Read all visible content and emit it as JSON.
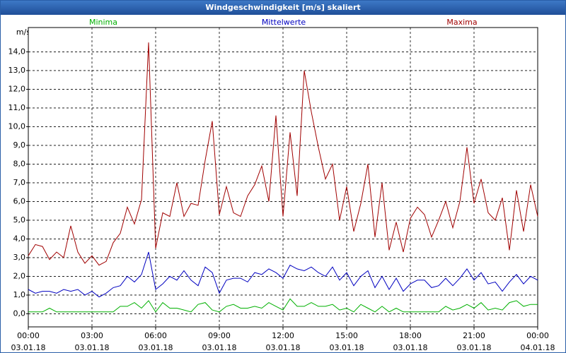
{
  "window_title": "Windgeschwindigkeit [m/s] skaliert",
  "chart_data": {
    "type": "line",
    "ylabel": "m/s",
    "x": [
      0,
      20,
      40,
      60,
      80,
      100,
      120,
      140,
      160,
      180,
      200,
      220,
      240,
      260,
      280,
      300,
      320,
      340,
      360,
      380,
      400,
      420,
      440,
      460,
      480,
      500,
      520,
      540,
      560,
      580,
      600,
      620,
      640,
      660,
      680,
      700,
      720,
      740,
      760,
      780,
      800,
      820,
      840,
      860,
      880,
      900,
      920,
      940,
      960,
      980,
      1000,
      1020,
      1040,
      1060,
      1080,
      1100,
      1120,
      1140,
      1160,
      1180,
      1200,
      1220,
      1240,
      1260,
      1280,
      1300,
      1320,
      1340,
      1360,
      1380,
      1400,
      1420,
      1440
    ],
    "xlim": [
      0,
      1440
    ],
    "xticks": [
      {
        "value": 0,
        "label": "00:00"
      },
      {
        "value": 180,
        "label": "03:00"
      },
      {
        "value": 360,
        "label": "06:00"
      },
      {
        "value": 540,
        "label": "09:00"
      },
      {
        "value": 720,
        "label": "12:00"
      },
      {
        "value": 900,
        "label": "15:00"
      },
      {
        "value": 1080,
        "label": "18:00"
      },
      {
        "value": 1260,
        "label": "21:00"
      },
      {
        "value": 1440,
        "label": "00:00"
      }
    ],
    "xtick_dates": [
      "03.01.18",
      "03.01.18",
      "03.01.18",
      "03.01.18",
      "03.01.18",
      "03.01.18",
      "03.01.18",
      "03.01.18",
      "04.01.18"
    ],
    "ylim": [
      -0.7,
      15.3
    ],
    "yticks": [
      {
        "value": 0,
        "label": "0,0"
      },
      {
        "value": 1,
        "label": "1,0"
      },
      {
        "value": 2,
        "label": "2,0"
      },
      {
        "value": 3,
        "label": "3,0"
      },
      {
        "value": 4,
        "label": "4,0"
      },
      {
        "value": 5,
        "label": "5,0"
      },
      {
        "value": 6,
        "label": "6,0"
      },
      {
        "value": 7,
        "label": "7,0"
      },
      {
        "value": 8,
        "label": "8,0"
      },
      {
        "value": 9,
        "label": "9,0"
      },
      {
        "value": 10,
        "label": "10,0"
      },
      {
        "value": 11,
        "label": "11,0"
      },
      {
        "value": 12,
        "label": "12,0"
      },
      {
        "value": 13,
        "label": "13,0"
      },
      {
        "value": 14,
        "label": "14,0"
      }
    ],
    "grid": true,
    "series": [
      {
        "name": "Minima",
        "color": "#00b000",
        "values": [
          0.1,
          0.1,
          0.1,
          0.3,
          0.1,
          0.1,
          0.1,
          0.1,
          0.1,
          0.1,
          0.1,
          0.1,
          0.1,
          0.4,
          0.4,
          0.6,
          0.3,
          0.7,
          0.1,
          0.6,
          0.3,
          0.3,
          0.2,
          0.1,
          0.5,
          0.6,
          0.2,
          0.1,
          0.4,
          0.5,
          0.3,
          0.3,
          0.4,
          0.3,
          0.6,
          0.4,
          0.2,
          0.8,
          0.4,
          0.4,
          0.6,
          0.4,
          0.4,
          0.5,
          0.2,
          0.3,
          0.1,
          0.5,
          0.3,
          0.1,
          0.4,
          0.1,
          0.3,
          0.1,
          0.1,
          0.1,
          0.1,
          0.1,
          0.1,
          0.4,
          0.2,
          0.3,
          0.5,
          0.3,
          0.6,
          0.2,
          0.3,
          0.2,
          0.6,
          0.7,
          0.4,
          0.5,
          0.5
        ]
      },
      {
        "name": "Mittelwerte",
        "color": "#0000c0",
        "values": [
          1.3,
          1.1,
          1.2,
          1.2,
          1.1,
          1.3,
          1.2,
          1.3,
          1.0,
          1.2,
          0.9,
          1.1,
          1.4,
          1.5,
          2.0,
          1.7,
          2.1,
          3.3,
          1.3,
          1.6,
          2.0,
          1.8,
          2.3,
          1.8,
          1.5,
          2.5,
          2.2,
          1.1,
          1.8,
          1.9,
          1.9,
          1.7,
          2.2,
          2.1,
          2.4,
          2.2,
          1.9,
          2.6,
          2.4,
          2.3,
          2.5,
          2.2,
          2.0,
          2.5,
          1.8,
          2.2,
          1.5,
          2.0,
          2.3,
          1.4,
          2.0,
          1.3,
          1.9,
          1.2,
          1.6,
          1.8,
          1.8,
          1.4,
          1.5,
          1.9,
          1.5,
          1.9,
          2.4,
          1.8,
          2.2,
          1.6,
          1.7,
          1.2,
          1.7,
          2.1,
          1.6,
          2.0,
          1.8
        ]
      },
      {
        "name": "Maxima",
        "color": "#a00000",
        "values": [
          3.1,
          3.7,
          3.6,
          2.9,
          3.3,
          3.0,
          4.7,
          3.3,
          2.7,
          3.1,
          2.6,
          2.8,
          3.8,
          4.3,
          5.7,
          4.8,
          6.1,
          14.5,
          3.5,
          5.4,
          5.2,
          7.0,
          5.2,
          5.9,
          5.8,
          8.2,
          10.3,
          5.3,
          6.8,
          5.4,
          5.2,
          6.3,
          6.9,
          7.9,
          6.0,
          10.6,
          5.2,
          9.7,
          6.3,
          13.0,
          10.8,
          8.9,
          7.2,
          8.0,
          5.0,
          6.8,
          4.4,
          5.9,
          8.0,
          4.1,
          7.0,
          3.4,
          4.9,
          3.3,
          5.1,
          5.7,
          5.3,
          4.1,
          5.0,
          6.0,
          4.6,
          6.0,
          8.9,
          5.9,
          7.2,
          5.4,
          5.0,
          6.2,
          3.4,
          6.6,
          4.4,
          6.9,
          5.2
        ]
      }
    ]
  }
}
